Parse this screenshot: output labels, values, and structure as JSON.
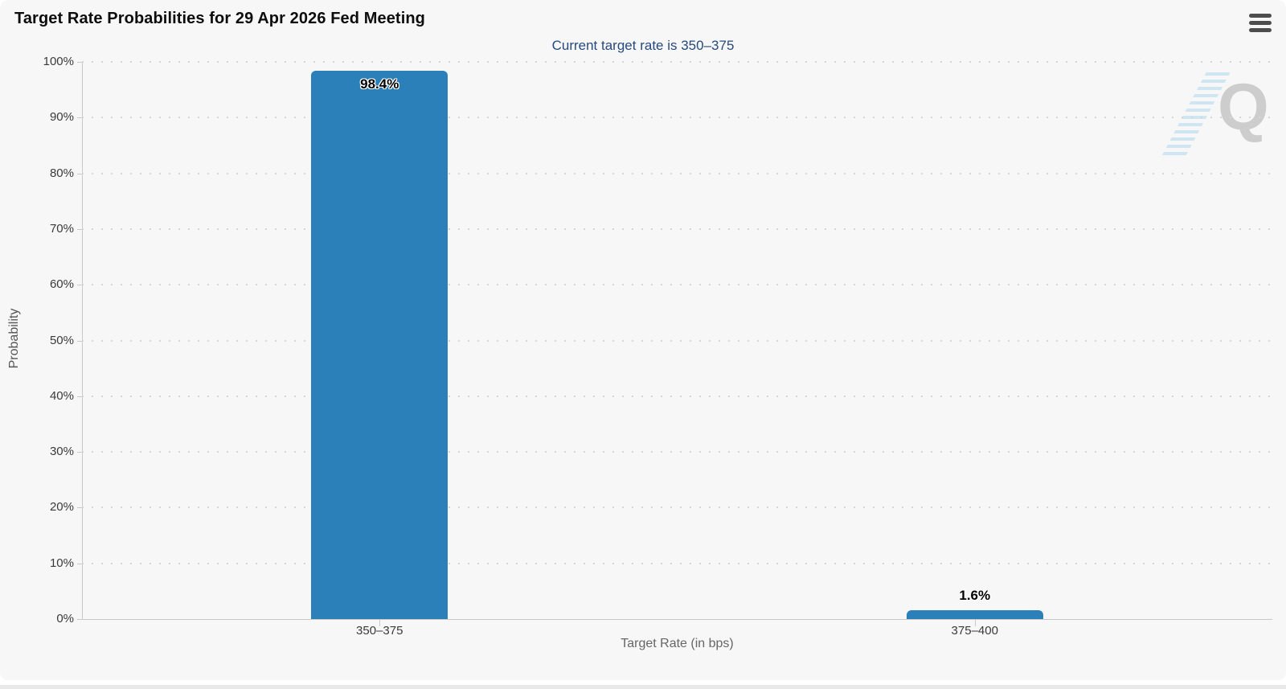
{
  "header": {
    "menu_icon": "hamburger-menu-icon"
  },
  "watermark": {
    "letter": "Q"
  },
  "chart_data": {
    "type": "bar",
    "title": "Target Rate Probabilities for 29 Apr 2026 Fed Meeting",
    "subtitle": "Current target rate is 350–375",
    "categories": [
      "350–375",
      "375–400"
    ],
    "values": [
      98.4,
      1.6
    ],
    "data_labels": [
      "98.4%",
      "1.6%"
    ],
    "xlabel": "Target Rate (in bps)",
    "ylabel": "Probability",
    "ylim": [
      0,
      100
    ],
    "ytick_step": 10,
    "ytick_labels": [
      "0%",
      "10%",
      "20%",
      "30%",
      "40%",
      "50%",
      "60%",
      "70%",
      "80%",
      "90%",
      "100%"
    ],
    "grid": true,
    "legend": false,
    "bar_color": "#2b80b9",
    "subtitle_color": "#274a7d"
  }
}
